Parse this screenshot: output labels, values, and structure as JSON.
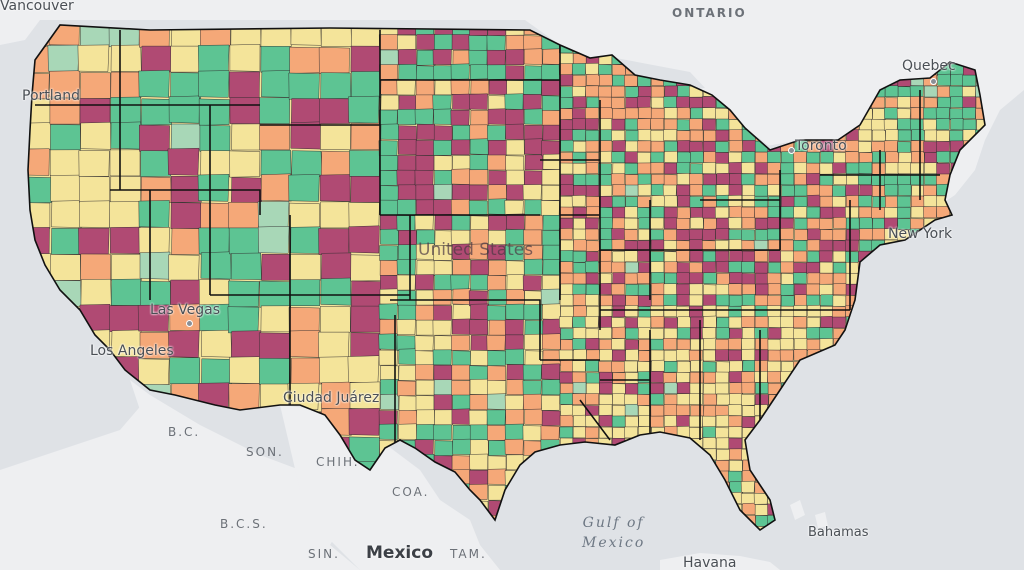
{
  "colors": {
    "water": "#dfe2e6",
    "land": "#eeeff1",
    "county_border": "#2e2a2c",
    "state_border": "#111111",
    "classes": [
      "#5dc493",
      "#a8d7b7",
      "#f4e49a",
      "#f5a878",
      "#b04a73"
    ]
  },
  "labels": {
    "vancouver": "Vancouver",
    "portland": "Portland",
    "ontario": "ONTARIO",
    "quebec": "Quebec",
    "toronto": "Toronto",
    "new_york": "New York",
    "los_angeles": "Los Angeles",
    "las_vegas": "Las Vegas",
    "ciudad_juarez": "Ciudad Juárez",
    "united_states": "United States",
    "bc": "B.C.",
    "son": "SON.",
    "chih": "CHIH.",
    "coa": "COA.",
    "bcs": "B.C.S.",
    "sin": "SIN.",
    "tam": "TAM.",
    "mexico": "Mexico",
    "gulf_line1": "Gulf of",
    "gulf_line2": "Mexico",
    "bahamas": "Bahamas",
    "havana": "Havana"
  }
}
